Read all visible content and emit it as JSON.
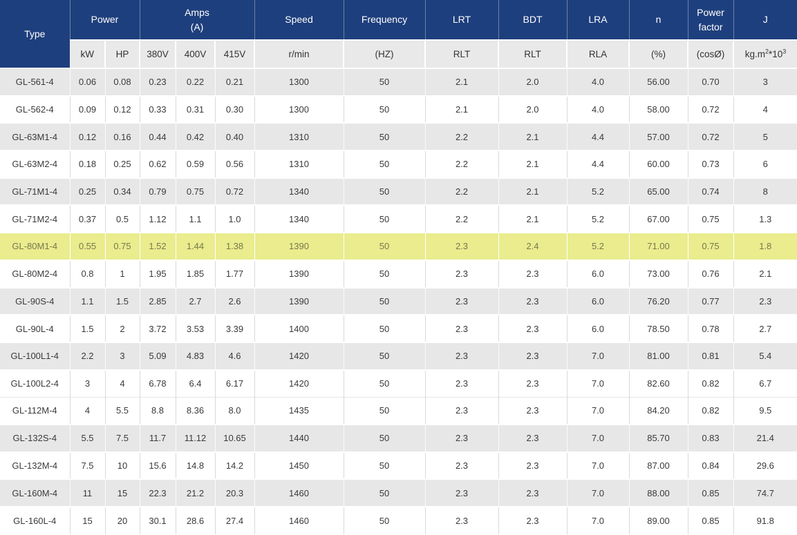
{
  "colors": {
    "header_blue": "#1e3f7d",
    "subheader_gray": "#e9e9e9",
    "row_gray": "#e7e7e7",
    "row_white": "#ffffff",
    "highlight_yellow": "#eaec8e",
    "highlight_text": "#78784c",
    "body_text": "#3a3a3a"
  },
  "table": {
    "header": {
      "type": "Type",
      "power": "Power",
      "amps_line1": "Amps",
      "amps_line2": "(A)",
      "speed": "Speed",
      "frequency": "Frequency",
      "lrt": "LRT",
      "bdt": "BDT",
      "lra": "LRA",
      "n": "n",
      "power_factor": "Power factor",
      "j": "J"
    },
    "subheader": {
      "kw": "kW",
      "hp": "HP",
      "v380": "380V",
      "v400": "400V",
      "v415": "415V",
      "rmin": "r/min",
      "hz": "(HZ)",
      "rlt1": "RLT",
      "rlt2": "RLT",
      "rla": "RLA",
      "pct": "(%)",
      "cos": "(cosØ)",
      "j_unit": {
        "base1": "kg.m",
        "sup1": "2",
        "base2": "*10",
        "sup2": "3"
      }
    },
    "highlight": {
      "row_type": "GL-80M1-4"
    },
    "rows": [
      {
        "shade": "gray",
        "cells": [
          "GL-561-4",
          "0.06",
          "0.08",
          "0.23",
          "0.22",
          "0.21",
          "1300",
          "50",
          "2.1",
          "2.0",
          "4.0",
          "56.00",
          "0.70",
          "3"
        ]
      },
      {
        "shade": "white",
        "cells": [
          "GL-562-4",
          "0.09",
          "0.12",
          "0.33",
          "0.31",
          "0.30",
          "1300",
          "50",
          "2.1",
          "2.0",
          "4.0",
          "58.00",
          "0.72",
          "4"
        ]
      },
      {
        "shade": "gray",
        "cells": [
          "GL-63M1-4",
          "0.12",
          "0.16",
          "0.44",
          "0.42",
          "0.40",
          "1310",
          "50",
          "2.2",
          "2.1",
          "4.4",
          "57.00",
          "0.72",
          "5"
        ]
      },
      {
        "shade": "white",
        "cells": [
          "GL-63M2-4",
          "0.18",
          "0.25",
          "0.62",
          "0.59",
          "0.56",
          "1310",
          "50",
          "2.2",
          "2.1",
          "4.4",
          "60.00",
          "0.73",
          "6"
        ]
      },
      {
        "shade": "gray",
        "cells": [
          "GL-71M1-4",
          "0.25",
          "0.34",
          "0.79",
          "0.75",
          "0.72",
          "1340",
          "50",
          "2.2",
          "2.1",
          "5.2",
          "65.00",
          "0.74",
          "8"
        ]
      },
      {
        "shade": "white",
        "cells": [
          "GL-71M2-4",
          "0.37",
          "0.5",
          "1.12",
          "1.1",
          "1.0",
          "1340",
          "50",
          "2.2",
          "2.1",
          "5.2",
          "67.00",
          "0.75",
          "1.3"
        ]
      },
      {
        "shade": "highlight",
        "cells": [
          "GL-80M1-4",
          "0.55",
          "0.75",
          "1.52",
          "1.44",
          "1.38",
          "1390",
          "50",
          "2.3",
          "2.4",
          "5.2",
          "71.00",
          "0.75",
          "1.8"
        ]
      },
      {
        "shade": "white",
        "cells": [
          "GL-80M2-4",
          "0.8",
          "1",
          "1.95",
          "1.85",
          "1.77",
          "1390",
          "50",
          "2.3",
          "2.3",
          "6.0",
          "73.00",
          "0.76",
          "2.1"
        ]
      },
      {
        "shade": "gray",
        "cells": [
          "GL-90S-4",
          "1.1",
          "1.5",
          "2.85",
          "2.7",
          "2.6",
          "1390",
          "50",
          "2.3",
          "2.3",
          "6.0",
          "76.20",
          "0.77",
          "2.3"
        ]
      },
      {
        "shade": "white",
        "cells": [
          "GL-90L-4",
          "1.5",
          "2",
          "3.72",
          "3.53",
          "3.39",
          "1400",
          "50",
          "2.3",
          "2.3",
          "6.0",
          "78.50",
          "0.78",
          "2.7"
        ]
      },
      {
        "shade": "gray",
        "cells": [
          "GL-100L1-4",
          "2.2",
          "3",
          "5.09",
          "4.83",
          "4.6",
          "1420",
          "50",
          "2.3",
          "2.3",
          "7.0",
          "81.00",
          "0.81",
          "5.4"
        ]
      },
      {
        "shade": "white",
        "cells": [
          "GL-100L2-4",
          "3",
          "4",
          "6.78",
          "6.4",
          "6.17",
          "1420",
          "50",
          "2.3",
          "2.3",
          "7.0",
          "82.60",
          "0.82",
          "6.7"
        ]
      },
      {
        "shade": "white",
        "cells": [
          "GL-112M-4",
          "4",
          "5.5",
          "8.8",
          "8.36",
          "8.0",
          "1435",
          "50",
          "2.3",
          "2.3",
          "7.0",
          "84.20",
          "0.82",
          "9.5"
        ]
      },
      {
        "shade": "gray",
        "cells": [
          "GL-132S-4",
          "5.5",
          "7.5",
          "11.7",
          "11.12",
          "10.65",
          "1440",
          "50",
          "2.3",
          "2.3",
          "7.0",
          "85.70",
          "0.83",
          "21.4"
        ]
      },
      {
        "shade": "white",
        "cells": [
          "GL-132M-4",
          "7.5",
          "10",
          "15.6",
          "14.8",
          "14.2",
          "1450",
          "50",
          "2.3",
          "2.3",
          "7.0",
          "87.00",
          "0.84",
          "29.6"
        ]
      },
      {
        "shade": "gray",
        "cells": [
          "GL-160M-4",
          "11",
          "15",
          "22.3",
          "21.2",
          "20.3",
          "1460",
          "50",
          "2.3",
          "2.3",
          "7.0",
          "88.00",
          "0.85",
          "74.7"
        ]
      },
      {
        "shade": "white",
        "cells": [
          "GL-160L-4",
          "15",
          "20",
          "30.1",
          "28.6",
          "27.4",
          "1460",
          "50",
          "2.3",
          "2.3",
          "7.0",
          "89.00",
          "0.85",
          "91.8"
        ]
      }
    ]
  }
}
